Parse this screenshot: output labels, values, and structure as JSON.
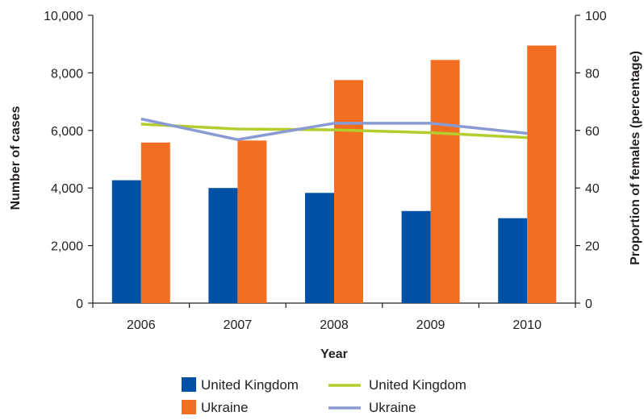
{
  "chart_data": {
    "type": "bar",
    "xlabel": "Year",
    "ylabel_left": "Number of cases",
    "ylabel_right": "Proportion of females (percentage)",
    "categories": [
      "2006",
      "2007",
      "2008",
      "2009",
      "2010"
    ],
    "ylim_left": [
      0,
      10000
    ],
    "ylim_right": [
      0,
      100
    ],
    "yticks_left": [
      "0",
      "2,000",
      "4,000",
      "6,000",
      "8,000",
      "10,000"
    ],
    "yticks_right": [
      "0",
      "20",
      "40",
      "60",
      "80",
      "100"
    ],
    "bar_series": [
      {
        "name": "United Kingdom",
        "color": "#0051a5",
        "values": [
          4270,
          4000,
          3830,
          3200,
          2950
        ]
      },
      {
        "name": "Ukraine",
        "color": "#f26f21",
        "values": [
          5580,
          5650,
          7750,
          8450,
          8950
        ]
      }
    ],
    "line_series": [
      {
        "name": "United Kingdom",
        "color": "#b5cc2e",
        "axis": "right",
        "values": [
          62.2,
          60.5,
          60.2,
          59.2,
          57.5
        ]
      },
      {
        "name": "Ukraine",
        "color": "#8a9bd4",
        "axis": "right",
        "values": [
          64.0,
          56.8,
          62.5,
          62.5,
          59.0
        ]
      }
    ],
    "grid": false,
    "legend": "bottom"
  }
}
